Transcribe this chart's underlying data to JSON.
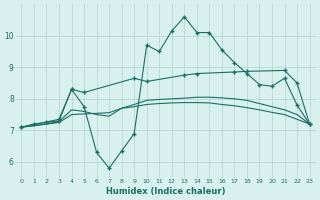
{
  "xlabel": "Humidex (Indice chaleur)",
  "background_color": "#d8f0ee",
  "grid_color": "#b8d8d4",
  "line_color": "#1a6e64",
  "xlim": [
    -0.5,
    23.5
  ],
  "ylim": [
    5.5,
    11.0
  ],
  "xticks": [
    0,
    1,
    2,
    3,
    4,
    5,
    6,
    7,
    8,
    9,
    10,
    11,
    12,
    13,
    14,
    15,
    16,
    17,
    18,
    19,
    20,
    21,
    22,
    23
  ],
  "yticks": [
    6,
    7,
    8,
    9,
    10
  ],
  "series": {
    "line1": {
      "x": [
        0,
        1,
        2,
        3,
        4,
        5,
        6,
        7,
        8,
        9,
        10,
        11,
        12,
        13,
        14,
        15,
        16,
        17,
        18,
        19,
        20,
        21,
        22,
        23
      ],
      "y": [
        7.1,
        7.2,
        7.25,
        7.3,
        8.3,
        7.75,
        6.3,
        5.8,
        6.35,
        6.9,
        9.7,
        9.5,
        10.15,
        10.6,
        10.1,
        10.1,
        9.55,
        9.15,
        8.8,
        8.45,
        8.4,
        8.65,
        7.8,
        7.2
      ],
      "markers": "all"
    },
    "line2": {
      "x": [
        0,
        3,
        4,
        5,
        9,
        10,
        13,
        14,
        17,
        18,
        21,
        22,
        23
      ],
      "y": [
        7.1,
        7.35,
        8.3,
        8.2,
        8.65,
        8.55,
        8.75,
        8.8,
        8.85,
        8.87,
        8.9,
        8.5,
        7.2
      ],
      "markers": "all"
    },
    "line3": {
      "x": [
        0,
        1,
        2,
        3,
        4,
        5,
        6,
        7,
        8,
        9,
        10,
        11,
        12,
        13,
        14,
        15,
        16,
        17,
        18,
        19,
        20,
        21,
        22,
        23
      ],
      "y": [
        7.1,
        7.15,
        7.2,
        7.25,
        7.5,
        7.52,
        7.54,
        7.56,
        7.7,
        7.75,
        7.82,
        7.85,
        7.87,
        7.88,
        7.88,
        7.87,
        7.82,
        7.78,
        7.72,
        7.65,
        7.57,
        7.5,
        7.35,
        7.2
      ],
      "markers": "none"
    },
    "line4": {
      "x": [
        0,
        1,
        2,
        3,
        4,
        5,
        6,
        7,
        8,
        9,
        10,
        11,
        12,
        13,
        14,
        15,
        16,
        17,
        18,
        19,
        20,
        21,
        22,
        23
      ],
      "y": [
        7.1,
        7.15,
        7.2,
        7.28,
        7.65,
        7.6,
        7.5,
        7.45,
        7.7,
        7.82,
        7.95,
        7.98,
        8.0,
        8.02,
        8.05,
        8.05,
        8.03,
        8.0,
        7.95,
        7.85,
        7.75,
        7.65,
        7.5,
        7.2
      ],
      "markers": "none"
    }
  }
}
